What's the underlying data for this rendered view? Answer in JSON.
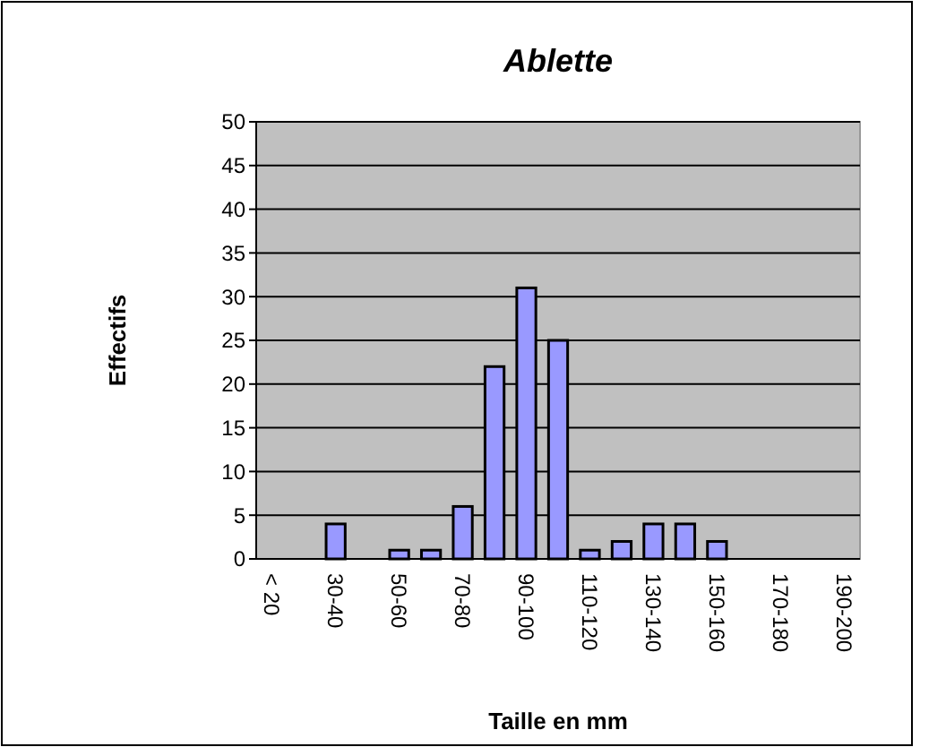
{
  "chart_data": {
    "type": "bar",
    "title": "Ablette",
    "xlabel": "Taille en mm",
    "ylabel": "Effectifs",
    "categories": [
      "< 20",
      null,
      "30-40",
      null,
      "50-60",
      null,
      "70-80",
      null,
      "90-100",
      null,
      "110-120",
      null,
      "130-140",
      null,
      "150-160",
      null,
      "170-180",
      null,
      "190-200"
    ],
    "values": [
      0,
      0,
      4,
      0,
      1,
      1,
      6,
      22,
      31,
      25,
      1,
      2,
      4,
      4,
      2,
      0,
      0,
      0,
      0
    ],
    "color": "#9999ff",
    "ylim": [
      0,
      50
    ],
    "yticks": [
      0,
      5,
      10,
      15,
      20,
      25,
      30,
      35,
      40,
      45,
      50
    ],
    "grid": "y"
  }
}
